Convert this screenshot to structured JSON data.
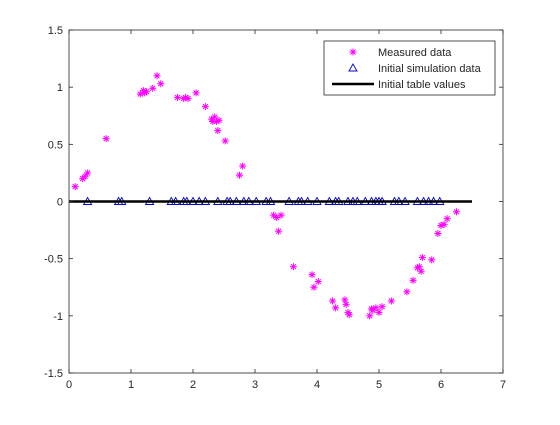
{
  "chart_data": {
    "type": "scatter",
    "xlim": [
      0,
      7
    ],
    "ylim": [
      -1.5,
      1.5
    ],
    "x_ticks": [
      "0",
      "1",
      "2",
      "3",
      "4",
      "5",
      "6",
      "7"
    ],
    "y_ticks": [
      "-1.5",
      "-1",
      "-0.5",
      "0",
      "0.5",
      "1",
      "1.5"
    ],
    "legend_position": "top-right",
    "grid": false,
    "series": [
      {
        "name": "Measured data",
        "marker": "asterisk",
        "color": "#FF00FF",
        "points": [
          [
            0.1,
            0.13
          ],
          [
            0.22,
            0.2
          ],
          [
            0.26,
            0.22
          ],
          [
            0.3,
            0.25
          ],
          [
            0.6,
            0.55
          ],
          [
            1.15,
            0.94
          ],
          [
            1.2,
            0.97
          ],
          [
            1.22,
            0.95
          ],
          [
            1.25,
            0.96
          ],
          [
            1.35,
            0.99
          ],
          [
            1.42,
            1.1
          ],
          [
            1.48,
            1.03
          ],
          [
            1.75,
            0.91
          ],
          [
            1.85,
            0.9
          ],
          [
            1.88,
            0.91
          ],
          [
            1.92,
            0.9
          ],
          [
            2.05,
            0.95
          ],
          [
            2.2,
            0.83
          ],
          [
            2.3,
            0.72
          ],
          [
            2.32,
            0.7
          ],
          [
            2.35,
            0.74
          ],
          [
            2.38,
            0.7
          ],
          [
            2.42,
            0.71
          ],
          [
            2.4,
            0.62
          ],
          [
            2.52,
            0.53
          ],
          [
            2.75,
            0.23
          ],
          [
            2.8,
            0.31
          ],
          [
            3.3,
            -0.12
          ],
          [
            3.35,
            -0.14
          ],
          [
            3.38,
            -0.26
          ],
          [
            3.42,
            -0.12
          ],
          [
            3.62,
            -0.57
          ],
          [
            3.92,
            -0.64
          ],
          [
            3.95,
            -0.75
          ],
          [
            4.02,
            -0.7
          ],
          [
            4.25,
            -0.87
          ],
          [
            4.3,
            -0.93
          ],
          [
            4.45,
            -0.86
          ],
          [
            4.47,
            -0.9
          ],
          [
            4.5,
            -0.97
          ],
          [
            4.52,
            -0.99
          ],
          [
            4.85,
            -1.0
          ],
          [
            4.88,
            -0.94
          ],
          [
            4.9,
            -0.95
          ],
          [
            4.95,
            -0.93
          ],
          [
            5.0,
            -0.97
          ],
          [
            5.05,
            -0.92
          ],
          [
            5.2,
            -0.87
          ],
          [
            5.45,
            -0.79
          ],
          [
            5.55,
            -0.69
          ],
          [
            5.62,
            -0.58
          ],
          [
            5.65,
            -0.57
          ],
          [
            5.68,
            -0.61
          ],
          [
            5.7,
            -0.49
          ],
          [
            5.85,
            -0.51
          ],
          [
            5.95,
            -0.28
          ],
          [
            6.0,
            -0.21
          ],
          [
            6.05,
            -0.2
          ],
          [
            6.1,
            -0.15
          ],
          [
            6.25,
            -0.09
          ]
        ]
      },
      {
        "name": "Initial simulation data",
        "marker": "triangle",
        "color": "#0000CC",
        "points": [
          [
            0.3,
            0
          ],
          [
            0.8,
            0
          ],
          [
            0.85,
            0
          ],
          [
            1.3,
            0
          ],
          [
            1.65,
            0
          ],
          [
            1.72,
            0
          ],
          [
            1.85,
            0
          ],
          [
            1.9,
            0
          ],
          [
            2.0,
            0
          ],
          [
            2.1,
            0
          ],
          [
            2.2,
            0
          ],
          [
            2.4,
            0
          ],
          [
            2.55,
            0
          ],
          [
            2.6,
            0
          ],
          [
            2.7,
            0
          ],
          [
            2.82,
            0
          ],
          [
            2.9,
            0
          ],
          [
            3.02,
            0
          ],
          [
            3.18,
            0
          ],
          [
            3.25,
            0
          ],
          [
            3.55,
            0
          ],
          [
            3.7,
            0
          ],
          [
            3.75,
            0
          ],
          [
            3.85,
            0
          ],
          [
            4.0,
            0
          ],
          [
            4.2,
            0
          ],
          [
            4.3,
            0
          ],
          [
            4.35,
            0
          ],
          [
            4.5,
            0
          ],
          [
            4.58,
            0
          ],
          [
            4.65,
            0
          ],
          [
            4.78,
            0
          ],
          [
            4.88,
            0
          ],
          [
            4.95,
            0
          ],
          [
            5.0,
            0
          ],
          [
            5.05,
            0
          ],
          [
            5.25,
            0
          ],
          [
            5.32,
            0
          ],
          [
            5.42,
            0
          ],
          [
            5.62,
            0
          ],
          [
            5.72,
            0
          ],
          [
            5.8,
            0
          ],
          [
            5.88,
            0
          ],
          [
            5.98,
            0
          ]
        ]
      },
      {
        "name": "Initial table values",
        "marker": "line",
        "color": "#000000",
        "points": [
          [
            0,
            0
          ],
          [
            6.5,
            0
          ]
        ]
      }
    ]
  }
}
